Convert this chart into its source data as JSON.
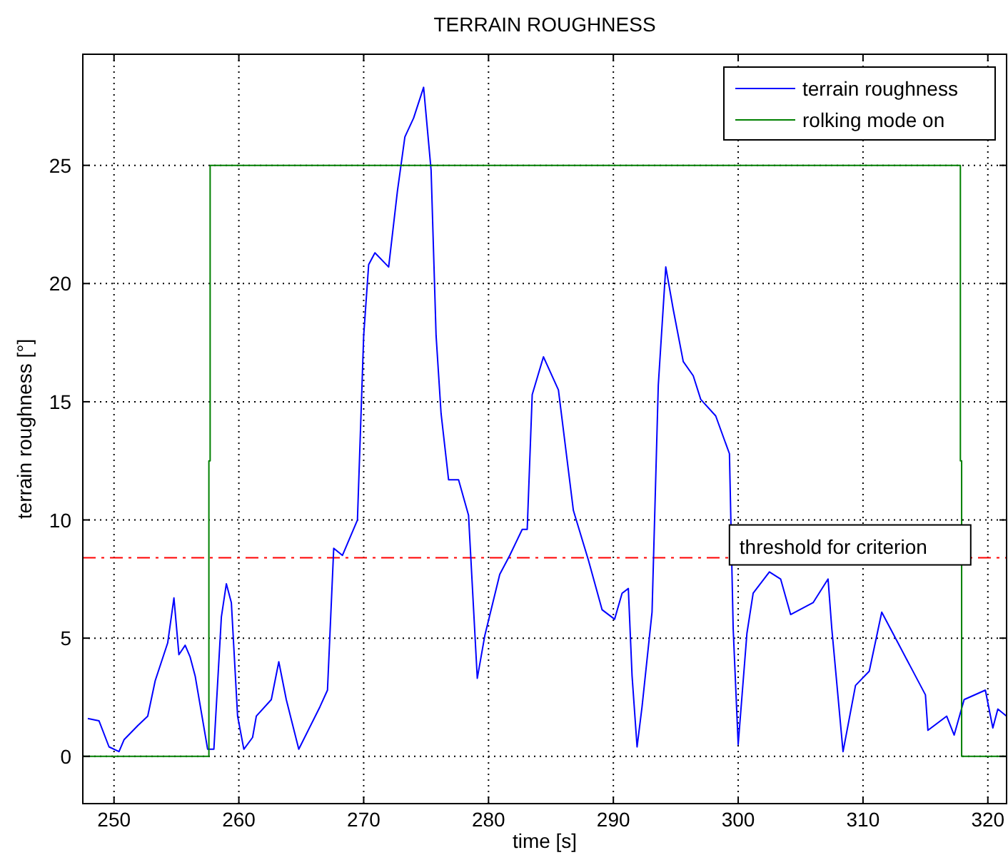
{
  "chart_data": {
    "type": "line",
    "title": "TERRAIN ROUGHNESS",
    "xlabel": "time [s]",
    "ylabel": "terrain roughness [°]",
    "xlim": [
      247.5,
      321.5
    ],
    "ylim": [
      -2,
      29.7
    ],
    "xticks": [
      250,
      260,
      270,
      280,
      290,
      300,
      310,
      320
    ],
    "yticks": [
      0,
      5,
      10,
      15,
      20,
      25
    ],
    "grid": true,
    "legend": "top right",
    "marker": "none",
    "line_style": "solid",
    "series": [
      {
        "name": "terrain roughness",
        "color": "#0000ff",
        "x": [
          247.9,
          248.8,
          249.6,
          250.4,
          250.8,
          251.9,
          252.7,
          253.3,
          254.3,
          254.8,
          255.2,
          255.7,
          256.1,
          256.5,
          257.5,
          258.0,
          258.6,
          259.0,
          259.4,
          259.9,
          260.4,
          261.1,
          261.4,
          262.6,
          263.2,
          263.8,
          264.8,
          266.5,
          267.1,
          267.6,
          268.3,
          268.7,
          269.5,
          270.0,
          270.4,
          270.9,
          272.0,
          272.7,
          273.3,
          274.0,
          274.8,
          275.4,
          275.8,
          276.2,
          276.8,
          277.6,
          278.4,
          279.1,
          279.7,
          280.9,
          281.7,
          282.7,
          283.1,
          283.5,
          284.4,
          285.6,
          286.8,
          288.0,
          289.1,
          290.1,
          290.7,
          291.2,
          291.5,
          291.9,
          292.3,
          293.1,
          293.6,
          294.2,
          294.8,
          295.6,
          296.4,
          297.0,
          298.2,
          299.3,
          299.6,
          300.0,
          300.7,
          301.2,
          302.5,
          303.4,
          304.2,
          306.0,
          307.2,
          307.5,
          308.4,
          309.4,
          310.5,
          311.5,
          312.8,
          313.8,
          315.0,
          315.2,
          316.7,
          317.3,
          318.1,
          319.8,
          320.4,
          320.8,
          321.5
        ],
        "values": [
          1.6,
          1.5,
          0.4,
          0.2,
          0.7,
          1.3,
          1.7,
          3.2,
          4.8,
          6.7,
          4.3,
          4.7,
          4.2,
          3.4,
          0.3,
          0.3,
          5.9,
          7.3,
          6.5,
          1.7,
          0.3,
          0.8,
          1.7,
          2.4,
          4.0,
          2.4,
          0.3,
          2.1,
          2.8,
          8.8,
          8.5,
          9.0,
          10.0,
          17.8,
          20.8,
          21.3,
          20.7,
          23.9,
          26.2,
          27.0,
          28.3,
          24.8,
          17.8,
          14.5,
          11.7,
          11.7,
          10.2,
          3.3,
          5.1,
          7.7,
          8.5,
          9.6,
          9.6,
          15.3,
          16.9,
          15.5,
          10.4,
          8.3,
          6.2,
          5.8,
          6.9,
          7.1,
          3.4,
          0.4,
          2.1,
          6.1,
          15.7,
          20.7,
          18.9,
          16.7,
          16.1,
          15.1,
          14.4,
          12.8,
          5.4,
          0.5,
          5.2,
          6.9,
          7.8,
          7.5,
          6.0,
          6.5,
          7.5,
          5.4,
          0.2,
          3.0,
          3.6,
          6.1,
          4.8,
          3.8,
          2.6,
          1.1,
          1.7,
          0.9,
          2.4,
          2.8,
          1.2,
          2.0,
          1.7
        ]
      },
      {
        "name": "rolking mode on",
        "color": "#008000",
        "x": [
          247.5,
          257.6,
          257.6,
          257.7,
          257.7,
          317.8,
          317.8,
          317.9,
          317.9,
          321.5
        ],
        "values": [
          0,
          0,
          12.5,
          12.5,
          25,
          25,
          12.5,
          12.5,
          0,
          0
        ]
      }
    ],
    "ref_lines": [
      {
        "axis": "y",
        "value": 8.4,
        "label": "threshold for criterion",
        "color": "#ff0000",
        "line_style": "dashdot"
      }
    ]
  }
}
